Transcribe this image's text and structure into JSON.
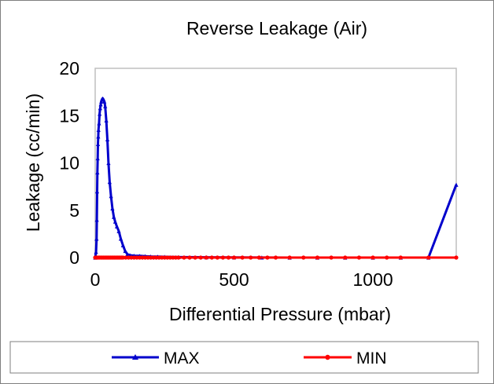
{
  "chart_data": {
    "type": "line",
    "title": "Reverse Leakage (Air)",
    "xlabel": "Differential Pressure (mbar)",
    "ylabel": "Leakage (cc/min)",
    "xlim": [
      0,
      1300
    ],
    "ylim": [
      0,
      20
    ],
    "xticks": [
      0,
      500,
      1000
    ],
    "yticks": [
      0,
      5,
      10,
      15,
      20
    ],
    "grid": false,
    "legend_position": "bottom",
    "series": [
      {
        "name": "MAX",
        "color": "#0000cc",
        "marker": "triangle",
        "points": [
          [
            0,
            0
          ],
          [
            3,
            0.6
          ],
          [
            5,
            2
          ],
          [
            6,
            4
          ],
          [
            7,
            7
          ],
          [
            8,
            9
          ],
          [
            9,
            10.5
          ],
          [
            10,
            12
          ],
          [
            11,
            12.8
          ],
          [
            12,
            13.5
          ],
          [
            14,
            14.2
          ],
          [
            16,
            15.2
          ],
          [
            18,
            15.8
          ],
          [
            20,
            16.2
          ],
          [
            22,
            16.5
          ],
          [
            24,
            16.7
          ],
          [
            26,
            16.8
          ],
          [
            28,
            16.8
          ],
          [
            30,
            16.7
          ],
          [
            33,
            16.5
          ],
          [
            36,
            16
          ],
          [
            40,
            14.5
          ],
          [
            44,
            12.5
          ],
          [
            48,
            10
          ],
          [
            52,
            8
          ],
          [
            57,
            6.5
          ],
          [
            62,
            5.2
          ],
          [
            67,
            4.3
          ],
          [
            72,
            3.8
          ],
          [
            78,
            3.3
          ],
          [
            85,
            2.8
          ],
          [
            92,
            2.0
          ],
          [
            100,
            1.3
          ],
          [
            108,
            0.7
          ],
          [
            116,
            0.35
          ],
          [
            125,
            0.25
          ],
          [
            140,
            0.2
          ],
          [
            160,
            0.18
          ],
          [
            180,
            0.15
          ],
          [
            200,
            0.12
          ],
          [
            225,
            0.1
          ],
          [
            250,
            0.08
          ],
          [
            300,
            0.05
          ],
          [
            400,
            0.03
          ],
          [
            500,
            0.02
          ],
          [
            600,
            0.01
          ],
          [
            700,
            0
          ],
          [
            800,
            0
          ],
          [
            900,
            0
          ],
          [
            1000,
            0
          ],
          [
            1100,
            0
          ],
          [
            1200,
            0
          ],
          [
            1300,
            7.7
          ]
        ]
      },
      {
        "name": "MIN",
        "color": "#ff0000",
        "marker": "circle",
        "points": [
          [
            0,
            0
          ],
          [
            5,
            0
          ],
          [
            10,
            0
          ],
          [
            15,
            0
          ],
          [
            20,
            0
          ],
          [
            25,
            0
          ],
          [
            30,
            0
          ],
          [
            35,
            0
          ],
          [
            40,
            0
          ],
          [
            45,
            0
          ],
          [
            50,
            0
          ],
          [
            55,
            0
          ],
          [
            60,
            0
          ],
          [
            65,
            0
          ],
          [
            70,
            0
          ],
          [
            75,
            0
          ],
          [
            80,
            0
          ],
          [
            85,
            0
          ],
          [
            90,
            0
          ],
          [
            95,
            0
          ],
          [
            100,
            0
          ],
          [
            110,
            0
          ],
          [
            120,
            0
          ],
          [
            130,
            0
          ],
          [
            140,
            0
          ],
          [
            150,
            0
          ],
          [
            160,
            0
          ],
          [
            170,
            0
          ],
          [
            180,
            0
          ],
          [
            190,
            0
          ],
          [
            200,
            0
          ],
          [
            210,
            0
          ],
          [
            220,
            0
          ],
          [
            230,
            0
          ],
          [
            240,
            0
          ],
          [
            250,
            0
          ],
          [
            260,
            0
          ],
          [
            270,
            0
          ],
          [
            280,
            0
          ],
          [
            290,
            0
          ],
          [
            300,
            0
          ],
          [
            320,
            0
          ],
          [
            340,
            0
          ],
          [
            360,
            0
          ],
          [
            380,
            0
          ],
          [
            400,
            0
          ],
          [
            420,
            0
          ],
          [
            440,
            0
          ],
          [
            460,
            0
          ],
          [
            480,
            0
          ],
          [
            500,
            0
          ],
          [
            530,
            0
          ],
          [
            560,
            0
          ],
          [
            590,
            0
          ],
          [
            620,
            0
          ],
          [
            650,
            0
          ],
          [
            700,
            0
          ],
          [
            750,
            0
          ],
          [
            800,
            0
          ],
          [
            850,
            0
          ],
          [
            900,
            0
          ],
          [
            950,
            0
          ],
          [
            1000,
            0
          ],
          [
            1050,
            0
          ],
          [
            1100,
            0
          ],
          [
            1200,
            0
          ],
          [
            1300,
            0
          ]
        ]
      }
    ]
  }
}
